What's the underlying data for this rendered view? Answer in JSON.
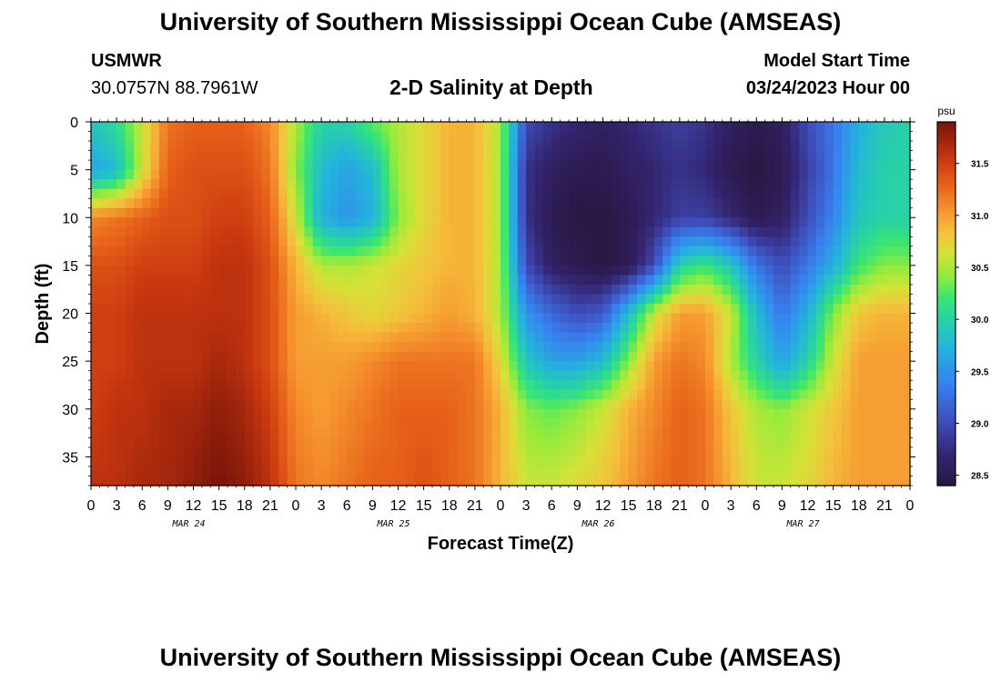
{
  "header": {
    "title": "University of Southern Mississippi Ocean Cube (AMSEAS)",
    "station_id": "USMWR",
    "coordinates": "30.0757N  88.7961W",
    "plot_title": "2-D Salinity at Depth",
    "model_start_label": "Model Start Time",
    "model_start_value": "03/24/2023 Hour 00"
  },
  "chart_data": {
    "type": "heatmap",
    "title": "2-D Salinity at Depth",
    "xlabel": "Forecast Time(Z)",
    "ylabel": "Depth (ft)",
    "x_range_hours": [
      0,
      96
    ],
    "y_range_ft": [
      0,
      38
    ],
    "x_tick_labels": [
      "0",
      "3",
      "6",
      "9",
      "12",
      "15",
      "18",
      "21",
      "0",
      "3",
      "6",
      "9",
      "12",
      "15",
      "18",
      "21",
      "0",
      "3",
      "6",
      "9",
      "12",
      "15",
      "18",
      "21",
      "0",
      "3",
      "6",
      "9",
      "12",
      "15",
      "18",
      "21",
      "0"
    ],
    "date_labels": [
      "MAR 24",
      "MAR 25",
      "MAR 26",
      "MAR 27"
    ],
    "y_ticks": [
      0,
      5,
      10,
      15,
      20,
      25,
      30,
      35
    ],
    "y_tick_labels": [
      "0",
      "5",
      "10",
      "15",
      "20",
      "25",
      "30",
      "35"
    ],
    "colorbar": {
      "units": "psu",
      "range": [
        28.4,
        31.9
      ],
      "ticks": [
        "28.5",
        "29.0",
        "29.5",
        "30.0",
        "30.5",
        "31.0",
        "31.5"
      ]
    },
    "value_range": [
      28.4,
      31.9
    ],
    "depths_ft": [
      0,
      5,
      10,
      15,
      20,
      25,
      30,
      38
    ],
    "hours": [
      0,
      3,
      6,
      9,
      12,
      15,
      18,
      21,
      24,
      27,
      30,
      33,
      36,
      39,
      42,
      45,
      48,
      51,
      54,
      57,
      60,
      63,
      66,
      69,
      72,
      75,
      78,
      81,
      84,
      87,
      90,
      93,
      96
    ],
    "salinity_psu": [
      [
        29.9,
        30.1,
        30.6,
        31.2,
        31.3,
        31.3,
        31.3,
        31.1,
        30.5,
        30.0,
        30.0,
        30.3,
        30.5,
        30.7,
        30.9,
        30.9,
        30.5,
        29.0,
        28.8,
        28.7,
        28.6,
        28.7,
        28.8,
        28.9,
        28.8,
        28.6,
        28.5,
        28.6,
        29.0,
        29.3,
        29.7,
        29.9,
        30.0
      ],
      [
        29.6,
        29.8,
        30.6,
        31.3,
        31.4,
        31.4,
        31.4,
        31.2,
        30.4,
        29.8,
        29.6,
        29.8,
        30.5,
        30.7,
        30.9,
        30.9,
        30.5,
        28.8,
        28.6,
        28.5,
        28.5,
        28.6,
        28.7,
        28.8,
        28.7,
        28.5,
        28.4,
        28.5,
        28.9,
        29.3,
        29.8,
        30.0,
        30.0
      ],
      [
        31.1,
        31.2,
        31.3,
        31.4,
        31.4,
        31.5,
        31.5,
        31.3,
        30.6,
        29.7,
        29.5,
        29.7,
        30.4,
        30.7,
        30.9,
        30.9,
        30.5,
        28.8,
        28.5,
        28.4,
        28.4,
        28.5,
        28.7,
        28.9,
        28.9,
        28.7,
        28.5,
        28.6,
        29.0,
        29.4,
        29.9,
        30.0,
        30.0
      ],
      [
        31.4,
        31.4,
        31.5,
        31.5,
        31.5,
        31.6,
        31.6,
        31.4,
        30.9,
        30.5,
        30.5,
        30.6,
        30.7,
        30.8,
        30.9,
        30.9,
        30.5,
        29.0,
        28.6,
        28.5,
        28.4,
        28.5,
        29.0,
        30.0,
        30.2,
        29.9,
        29.3,
        29.0,
        29.3,
        29.7,
        30.2,
        30.4,
        30.4
      ],
      [
        31.5,
        31.5,
        31.6,
        31.6,
        31.6,
        31.6,
        31.6,
        31.4,
        31.0,
        30.9,
        30.8,
        30.7,
        30.8,
        30.9,
        31.0,
        30.9,
        30.5,
        29.5,
        29.2,
        29.0,
        29.1,
        29.8,
        30.6,
        31.0,
        31.0,
        30.6,
        29.8,
        29.3,
        29.7,
        30.4,
        30.8,
        30.9,
        30.9
      ],
      [
        31.5,
        31.5,
        31.6,
        31.6,
        31.6,
        31.7,
        31.6,
        31.4,
        31.0,
        31.0,
        31.0,
        31.1,
        31.2,
        31.2,
        31.2,
        31.2,
        30.7,
        29.9,
        29.6,
        29.6,
        29.8,
        30.4,
        31.0,
        31.2,
        31.1,
        30.5,
        30.0,
        29.6,
        30.0,
        30.6,
        31.0,
        31.0,
        31.0
      ],
      [
        31.5,
        31.6,
        31.6,
        31.7,
        31.7,
        31.8,
        31.7,
        31.5,
        31.1,
        31.0,
        31.1,
        31.2,
        31.3,
        31.3,
        31.3,
        31.2,
        30.9,
        30.4,
        30.3,
        30.4,
        30.6,
        30.9,
        31.1,
        31.3,
        31.2,
        30.8,
        30.5,
        30.4,
        30.6,
        30.8,
        31.0,
        31.0,
        31.0
      ],
      [
        31.6,
        31.6,
        31.7,
        31.7,
        31.8,
        31.9,
        31.8,
        31.6,
        31.2,
        31.1,
        31.2,
        31.3,
        31.3,
        31.4,
        31.3,
        31.2,
        30.9,
        30.6,
        30.6,
        30.7,
        30.8,
        31.0,
        31.2,
        31.3,
        31.2,
        30.9,
        30.6,
        30.6,
        30.7,
        30.9,
        31.0,
        31.0,
        31.0
      ]
    ]
  }
}
